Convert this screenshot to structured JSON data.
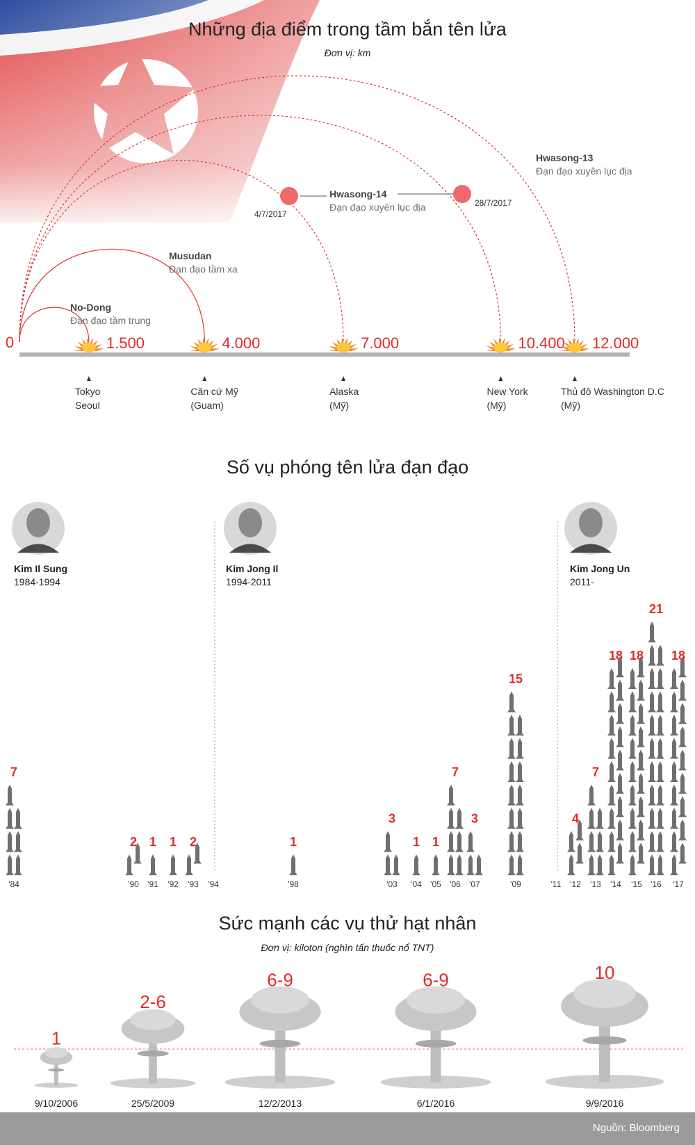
{
  "colors": {
    "accent": "#e02b2b",
    "arc": "#d93535",
    "gray": "#6e6e6e",
    "axis": "#b3b3b3",
    "footer": "#9a9a9a"
  },
  "range_chart": {
    "title": "Những địa điểm trong tầm bắn tên lửa",
    "unit": "Đơn vị: km",
    "chart_data": {
      "type": "scatter",
      "x_label": "km",
      "xlim": [
        0,
        12000
      ],
      "origin_label": "0",
      "ranges": [
        {
          "value": 1500,
          "value_label": "1.500",
          "missile": "No-Dong",
          "missile_type": "Đạn đạo tầm trung",
          "place_lines": [
            "Tokyo",
            "Seoul"
          ]
        },
        {
          "value": 4000,
          "value_label": "4.000",
          "missile": "Musudan",
          "missile_type": "Đạn đạo tầm xa",
          "place_lines": [
            "Căn cứ Mỹ",
            "(Guam)"
          ]
        },
        {
          "value": 7000,
          "value_label": "7.000",
          "missile": "",
          "missile_type": "",
          "place_lines": [
            "Alaska",
            "(Mỹ)"
          ]
        },
        {
          "value": 10400,
          "value_label": "10.400",
          "missile": "",
          "missile_type": "",
          "place_lines": [
            "New York",
            "(Mỹ)"
          ]
        },
        {
          "value": 12000,
          "value_label": "12.000",
          "missile": "Hwasong-13",
          "missile_type": "Đạn đạo xuyên lục địa",
          "place_lines": [
            "Thủ đô Washington D.C",
            "(Mỹ)"
          ]
        }
      ],
      "hwasong14": {
        "name": "Hwasong-14",
        "type": "Đạn đạo xuyên lục địa",
        "tests": [
          {
            "date": "4/7/2017",
            "range": 7000
          },
          {
            "date": "28/7/2017",
            "range": 10400
          }
        ]
      }
    }
  },
  "launch_chart": {
    "title": "Số vụ phóng tên lửa đạn đạo",
    "leaders": [
      {
        "name": "Kim Il Sung",
        "years": "1984-1994"
      },
      {
        "name": "Kim Jong Il",
        "years": "1994-2011"
      },
      {
        "name": "Kim Jong Un",
        "years": "2011-"
      }
    ],
    "chart_data": {
      "type": "bar",
      "categories": [
        "'84",
        "'90",
        "'91",
        "'92",
        "'93",
        "'94",
        "'98",
        "'03",
        "'04",
        "'05",
        "'06",
        "'07",
        "'09",
        "'11",
        "'12",
        "'13",
        "'14",
        "'15",
        "'16",
        "'17"
      ],
      "values": [
        7,
        2,
        1,
        1,
        2,
        0,
        1,
        3,
        1,
        1,
        7,
        3,
        15,
        0,
        4,
        7,
        18,
        18,
        21,
        18
      ],
      "value_labels": [
        "7",
        "2",
        "1",
        "1",
        "2",
        "",
        "1",
        "3",
        "1",
        "1",
        "7",
        "3",
        "15",
        "",
        "4",
        "7",
        "18",
        "18",
        "21",
        "18"
      ],
      "leader_boundaries": [
        "'94",
        "'11"
      ]
    }
  },
  "nuclear_chart": {
    "title": "Sức mạnh các vụ thử hạt nhân",
    "unit": "Đơn vị: kiloton (nghìn tấn thuốc nổ TNT)",
    "chart_data": {
      "type": "bar",
      "categories": [
        "9/10/2006",
        "25/5/2009",
        "12/2/2013",
        "6/1/2016",
        "9/9/2016"
      ],
      "value_labels": [
        "1",
        "2-6",
        "6-9",
        "6-9",
        "10"
      ],
      "values_max": [
        1,
        6,
        9,
        9,
        10
      ],
      "reference_line": 6
    }
  },
  "footer": {
    "source": "Nguồn: Bloomberg"
  }
}
